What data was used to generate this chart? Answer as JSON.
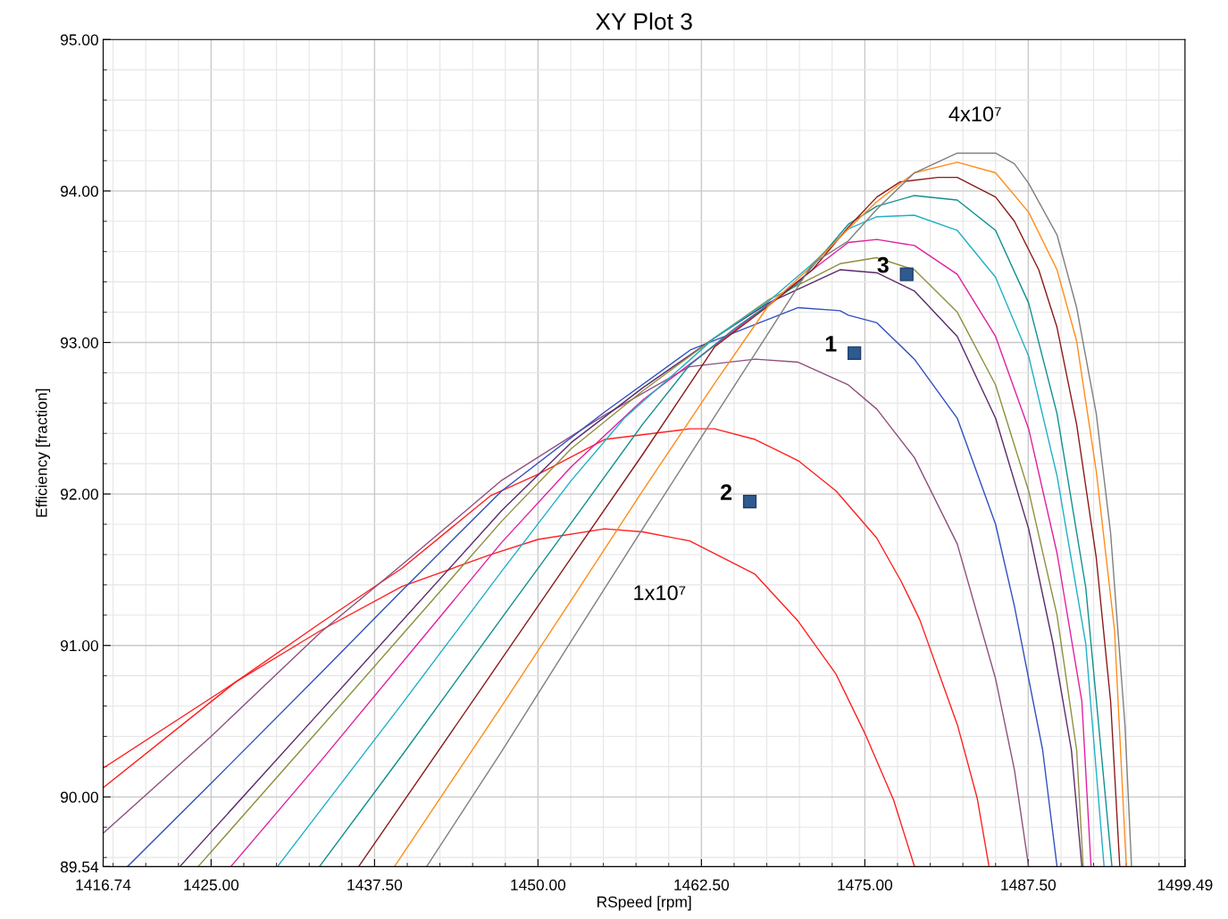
{
  "chart_data": {
    "type": "line",
    "title": "XY Plot 3",
    "xlabel": "RSpeed [rpm]",
    "ylabel": "Efficiency [fraction]",
    "xlim": [
      1416.74,
      1499.49
    ],
    "ylim": [
      89.54,
      95
    ],
    "xticks": [
      1416.74,
      {
        "value": 1425,
        "label": "1425.00"
      },
      {
        "value": 1437.5,
        "label": "1437.50"
      },
      {
        "value": 1450,
        "label": "1450.00"
      },
      {
        "value": 1462.5,
        "label": "1462.50"
      },
      {
        "value": 1475,
        "label": "1475.00"
      },
      {
        "value": 1487.5,
        "label": "1487.50"
      },
      1499.49
    ],
    "yticks": [
      89.54,
      {
        "value": 90,
        "label": "90.00"
      },
      {
        "value": 91,
        "label": "91.00"
      },
      {
        "value": 92,
        "label": "92.00"
      },
      {
        "value": 93,
        "label": "93.00"
      },
      {
        "value": 94,
        "label": "94.00"
      },
      {
        "value": 95,
        "label": "95.00"
      }
    ],
    "grid": true,
    "legend": false,
    "marker": "none",
    "line_style": "solid",
    "series": [
      {
        "color": "#ff2020",
        "x": [
          1416.74,
          1426.9,
          1433.4,
          1439.6,
          1446.4,
          1450.0,
          1455.1,
          1458.0,
          1461.6,
          1466.6,
          1469.9,
          1472.8,
          1475.0,
          1477.2,
          1478.8
        ],
        "values": [
          90.19,
          90.76,
          91.1,
          91.39,
          91.6,
          91.7,
          91.77,
          91.75,
          91.69,
          91.47,
          91.16,
          90.81,
          90.42,
          89.98,
          89.54
        ]
      },
      {
        "color": "#ff2020",
        "x": [
          1416.74,
          1426.9,
          1433.4,
          1439.6,
          1446.4,
          1450.0,
          1455.1,
          1461.6,
          1463.5,
          1466.6,
          1469.9,
          1472.8,
          1475.9,
          1477.8,
          1479.2,
          1482.1,
          1483.6,
          1484.5
        ],
        "values": [
          90.06,
          90.76,
          91.15,
          91.51,
          91.99,
          92.13,
          92.36,
          92.43,
          92.43,
          92.36,
          92.22,
          92.02,
          91.71,
          91.42,
          91.17,
          90.47,
          89.99,
          89.54
        ]
      },
      {
        "color": "#8f4f7f",
        "x": [
          1416.74,
          1425.0,
          1433.41,
          1439.56,
          1447.22,
          1455.08,
          1461.57,
          1466.62,
          1469.9,
          1473.73,
          1475.92,
          1478.79,
          1482.07,
          1485.0,
          1486.44,
          1487.53
        ],
        "values": [
          89.76,
          90.4,
          91.09,
          91.53,
          92.09,
          92.52,
          92.84,
          92.89,
          92.87,
          92.72,
          92.56,
          92.24,
          91.67,
          90.78,
          90.18,
          89.54
        ]
      },
      {
        "color": "#3050c0",
        "x": [
          1418.6,
          1425.0,
          1433.41,
          1439.56,
          1447.22,
          1455.08,
          1461.64,
          1469.9,
          1473.1,
          1473.73,
          1475.92,
          1478.79,
          1482.07,
          1485.0,
          1486.44,
          1488.6,
          1489.7
        ],
        "values": [
          89.54,
          90.09,
          90.82,
          91.36,
          92.02,
          92.54,
          92.95,
          93.23,
          93.21,
          93.18,
          93.13,
          92.89,
          92.5,
          91.8,
          91.26,
          90.31,
          89.54
        ]
      },
      {
        "color": "#5a2a6a",
        "x": [
          1422.6,
          1433.41,
          1447.22,
          1452.55,
          1458.0,
          1463.5,
          1467.6,
          1473.1,
          1475.92,
          1478.79,
          1482.07,
          1485.0,
          1487.53,
          1489.4,
          1490.8,
          1491.6
        ],
        "values": [
          89.54,
          90.57,
          91.89,
          92.34,
          92.7,
          93.03,
          93.26,
          93.48,
          93.46,
          93.34,
          93.04,
          92.5,
          91.77,
          91.01,
          90.31,
          89.54
        ]
      },
      {
        "color": "#8f8f3f",
        "x": [
          1424.0,
          1433.41,
          1447.22,
          1452.55,
          1458.0,
          1463.5,
          1467.6,
          1469.9,
          1473.1,
          1475.9,
          1478.79,
          1482.07,
          1485.0,
          1487.53,
          1489.7,
          1491.2,
          1491.7
        ],
        "values": [
          89.54,
          90.46,
          91.82,
          92.3,
          92.68,
          93.03,
          93.28,
          93.38,
          93.52,
          93.56,
          93.48,
          93.2,
          92.72,
          92.02,
          91.2,
          90.31,
          89.54
        ]
      },
      {
        "color": "#e020a0",
        "x": [
          1426.5,
          1433.41,
          1447.22,
          1452.55,
          1458.0,
          1463.5,
          1467.6,
          1471.0,
          1473.73,
          1475.92,
          1478.79,
          1482.07,
          1485.0,
          1487.53,
          1489.7,
          1491.6,
          1492.3
        ],
        "values": [
          89.54,
          90.24,
          91.68,
          92.18,
          92.62,
          92.98,
          93.25,
          93.48,
          93.66,
          93.68,
          93.64,
          93.45,
          93.04,
          92.43,
          91.61,
          90.63,
          89.54
        ]
      },
      {
        "color": "#20b0c8",
        "x": [
          1430.07,
          1439.56,
          1447.22,
          1452.55,
          1456.6,
          1463.5,
          1467.6,
          1471.0,
          1473.73,
          1475.92,
          1478.79,
          1482.07,
          1485.0,
          1487.53,
          1489.7,
          1491.9,
          1493.3
        ],
        "values": [
          89.54,
          90.61,
          91.49,
          92.09,
          92.5,
          93.03,
          93.27,
          93.52,
          93.75,
          93.83,
          93.84,
          93.74,
          93.43,
          92.91,
          92.12,
          91.01,
          89.54
        ]
      },
      {
        "color": "#108f8f",
        "x": [
          1433.28,
          1439.56,
          1447.22,
          1452.55,
          1458.0,
          1461.6,
          1465.0,
          1469.9,
          1473.73,
          1475.92,
          1478.79,
          1482.07,
          1485.0,
          1487.53,
          1489.7,
          1491.9,
          1493.9
        ],
        "values": [
          89.54,
          90.27,
          91.18,
          91.81,
          92.46,
          92.85,
          93.09,
          93.39,
          93.78,
          93.9,
          93.97,
          93.94,
          93.74,
          93.26,
          92.53,
          91.38,
          89.54
        ]
      },
      {
        "color": "#8b1a1a",
        "x": [
          1436.28,
          1447.22,
          1452.55,
          1458.0,
          1463.5,
          1467.6,
          1471.0,
          1473.73,
          1475.92,
          1477.7,
          1480.6,
          1482.07,
          1485.0,
          1486.44,
          1488.3,
          1489.7,
          1491.2,
          1492.7,
          1493.8,
          1494.5
        ],
        "values": [
          89.54,
          90.91,
          91.58,
          92.26,
          92.97,
          93.24,
          93.48,
          93.76,
          93.96,
          94.06,
          94.09,
          94.09,
          93.96,
          93.8,
          93.48,
          93.1,
          92.46,
          91.58,
          90.63,
          89.54
        ]
      },
      {
        "color": "#ff8c1a",
        "x": [
          1439.02,
          1447.22,
          1452.55,
          1458.0,
          1463.5,
          1467.6,
          1471.0,
          1473.73,
          1475.92,
          1478.79,
          1482.07,
          1485.0,
          1487.53,
          1489.7,
          1491.2,
          1492.7,
          1494.1,
          1495.0
        ],
        "values": [
          89.54,
          90.6,
          91.3,
          92.02,
          92.73,
          93.24,
          93.51,
          93.75,
          93.93,
          94.12,
          94.19,
          94.12,
          93.86,
          93.48,
          93.01,
          92.15,
          91.1,
          89.54
        ]
      },
      {
        "color": "#7f7f7f",
        "x": [
          1441.48,
          1447.22,
          1452.55,
          1458.0,
          1463.5,
          1467.6,
          1471.0,
          1473.73,
          1475.92,
          1478.79,
          1482.07,
          1485.0,
          1486.44,
          1487.53,
          1489.7,
          1491.2,
          1492.7,
          1493.8,
          1494.9,
          1495.4
        ],
        "values": [
          89.54,
          90.3,
          91.03,
          91.77,
          92.51,
          93.06,
          93.52,
          93.67,
          93.88,
          94.12,
          94.25,
          94.25,
          94.18,
          94.05,
          93.71,
          93.23,
          92.53,
          91.74,
          90.47,
          89.54
        ]
      }
    ],
    "annotations": [
      {
        "text": "1",
        "x": 1474.2,
        "y": 92.93
      },
      {
        "text": "2",
        "x": 1466.2,
        "y": 91.95
      },
      {
        "text": "3",
        "x": 1478.2,
        "y": 93.45
      },
      "1x10⁷",
      "4x10⁷"
    ]
  }
}
